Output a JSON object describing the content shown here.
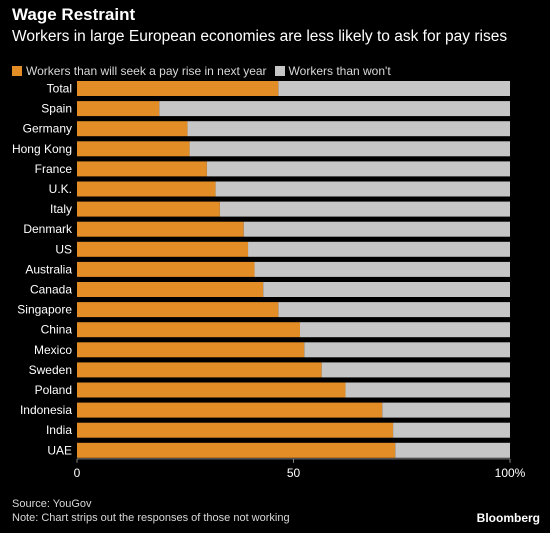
{
  "header": {
    "title": "Wage Restraint",
    "subtitle": "Workers in large European economies are less likely to ask for pay rises"
  },
  "colors": {
    "background": "#000000",
    "seek": "#e38d26",
    "wont": "#c6c6c6",
    "text": "#ffffff",
    "muted": "#d8d8d8"
  },
  "chart_data": {
    "type": "bar",
    "orientation": "horizontal",
    "stacked": true,
    "categories": [
      "Total",
      "Spain",
      "Germany",
      "Hong Kong",
      "France",
      "U.K.",
      "Italy",
      "Denmark",
      "US",
      "Australia",
      "Canada",
      "Singapore",
      "China",
      "Mexico",
      "Sweden",
      "Poland",
      "Indonesia",
      "India",
      "UAE"
    ],
    "series": [
      {
        "name": "Workers than will seek a pay rise in next year",
        "color": "#e38d26",
        "values": [
          46.5,
          19,
          25.5,
          26,
          30,
          32,
          33,
          38.5,
          39.5,
          41,
          43,
          46.5,
          51.5,
          52.5,
          56.5,
          62,
          70.5,
          73,
          73.5
        ]
      },
      {
        "name": "Workers than won't",
        "color": "#c6c6c6",
        "values": [
          53.5,
          81,
          74.5,
          74,
          70,
          68,
          67,
          61.5,
          60.5,
          59,
          57,
          53.5,
          48.5,
          47.5,
          43.5,
          38,
          29.5,
          27,
          26.5
        ]
      }
    ],
    "xlim": [
      0,
      100
    ],
    "xticks": [
      {
        "value": 0,
        "label": "0"
      },
      {
        "value": 50,
        "label": "50"
      },
      {
        "value": 100,
        "label": "100%"
      }
    ],
    "grid": false,
    "legend_position": "top-left"
  },
  "footer": {
    "source": "Source: YouGov",
    "note": "Note: Chart strips out the responses of those not working",
    "brand": "Bloomberg"
  }
}
